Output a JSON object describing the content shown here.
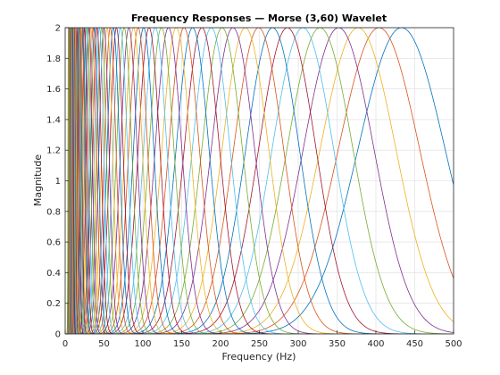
{
  "chart_data": {
    "type": "line",
    "title": "Frequency Responses — Morse (3,60) Wavelet",
    "xlabel": "Frequency (Hz)",
    "ylabel": "Magnitude",
    "xlim": [
      0,
      500
    ],
    "ylim": [
      0,
      2
    ],
    "x_ticks": [
      "0",
      "50",
      "100",
      "150",
      "200",
      "250",
      "300",
      "350",
      "400",
      "450",
      "500"
    ],
    "y_ticks": [
      "0",
      "0.2",
      "0.4",
      "0.6",
      "0.8",
      "1",
      "1.2",
      "1.4",
      "1.6",
      "1.8",
      "2"
    ],
    "grid": true,
    "legend": "none",
    "series_model": {
      "family": "morse",
      "gamma": 3,
      "time_bandwidth": 60,
      "peak_magnitude": 2,
      "highest_peak_frequency_hz": 433,
      "voices_per_octave": 10,
      "filter_count": 68
    },
    "series_peak_frequencies_hz": [
      433,
      404,
      377,
      352,
      328,
      306,
      286,
      267,
      249,
      232,
      216,
      202,
      188,
      176,
      164,
      153,
      143,
      133,
      124,
      116,
      108,
      101,
      94,
      88,
      82,
      76,
      71,
      66,
      62,
      58,
      54,
      50,
      47,
      44,
      41,
      38,
      36,
      33,
      31,
      29,
      27,
      25,
      23,
      22,
      20,
      19,
      18,
      17,
      16,
      14,
      13.5,
      12.6,
      11.7,
      10.9,
      10.2,
      9.5,
      8.9,
      8.3,
      7.7,
      7.2,
      6.7,
      6.3,
      5.8,
      5.4,
      5.1,
      4.7,
      4.4,
      4.1
    ],
    "colors": [
      "#0072bd",
      "#d95319",
      "#edb120",
      "#7e2f8e",
      "#77ac30",
      "#4dbeee",
      "#a2142f"
    ]
  }
}
